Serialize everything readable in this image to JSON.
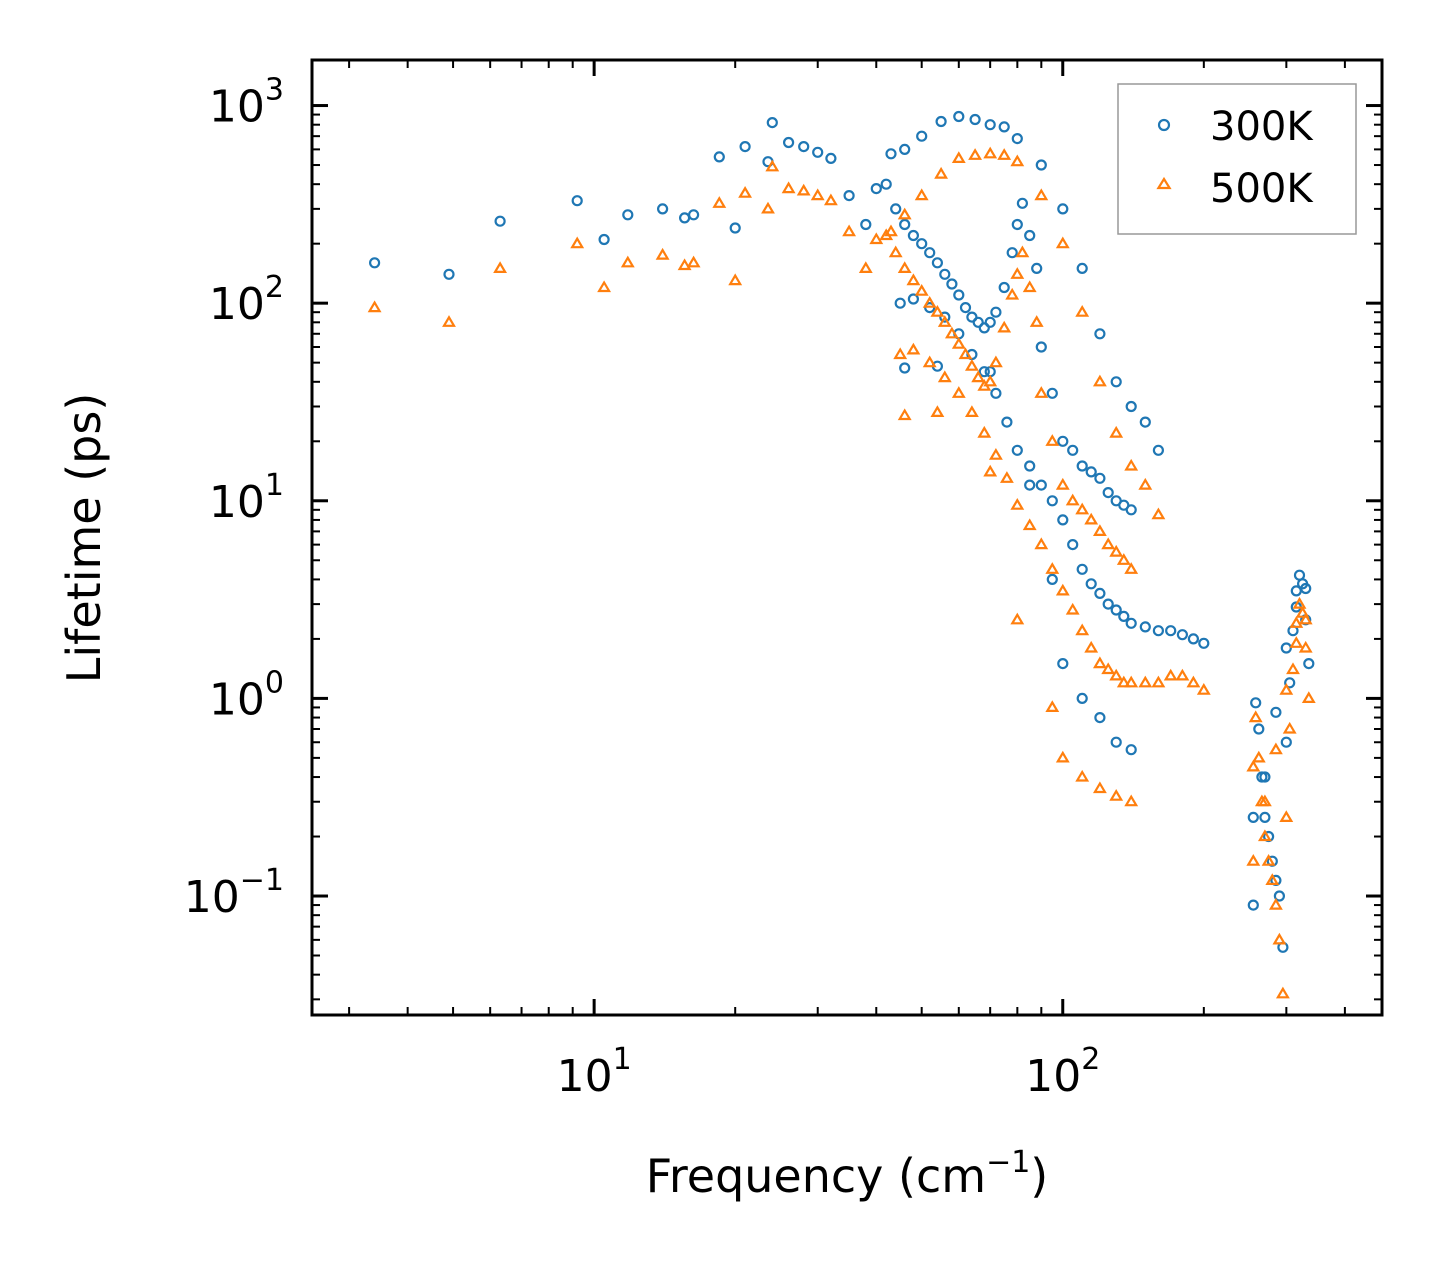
{
  "chart_data": {
    "type": "scatter",
    "xscale": "log",
    "yscale": "log",
    "xlim": [
      2.5,
      480
    ],
    "ylim": [
      0.025,
      1700
    ],
    "xlabel": "Frequency (cm",
    "xlabel_exponent": "−1",
    "xlabel_close": ")",
    "ylabel": "Lifetime (ps)",
    "x_major_ticks": [
      {
        "base": "10",
        "exp": "1",
        "value": 10
      },
      {
        "base": "10",
        "exp": "2",
        "value": 100
      }
    ],
    "y_major_ticks": [
      {
        "base": "10",
        "exp": "3",
        "value": 1000
      },
      {
        "base": "10",
        "exp": "2",
        "value": 100
      },
      {
        "base": "10",
        "exp": "1",
        "value": 10
      },
      {
        "base": "10",
        "exp": "0",
        "value": 1
      },
      {
        "base": "10",
        "exp": "−1",
        "value": 0.1
      }
    ],
    "legend": {
      "position": "top-right"
    },
    "series": [
      {
        "name": "300K",
        "marker": "circle",
        "color": "#1f77b4",
        "x": [
          3.4,
          4.9,
          6.3,
          9.2,
          10.5,
          11.8,
          14.0,
          15.6,
          16.3,
          18.5,
          20.0,
          21.0,
          23.5,
          24.0,
          26.0,
          28.0,
          30.0,
          32.0,
          35.0,
          38.0,
          40.0,
          42.0,
          44.0,
          46.0,
          48.0,
          50.0,
          52.0,
          54.0,
          56.0,
          58.0,
          60.0,
          62.0,
          64.0,
          66.0,
          68.0,
          70.0,
          72.0,
          75.0,
          78.0,
          80.0,
          82.0,
          85.0,
          88.0,
          90.0,
          95.0,
          100.0,
          105.0,
          110.0,
          115.0,
          120.0,
          125.0,
          130.0,
          135.0,
          140.0,
          45.0,
          48.0,
          52.0,
          56.0,
          60.0,
          64.0,
          68.0,
          72.0,
          76.0,
          80.0,
          85.0,
          90.0,
          95.0,
          100.0,
          105.0,
          110.0,
          115.0,
          120.0,
          125.0,
          130.0,
          135.0,
          140.0,
          150.0,
          160.0,
          170.0,
          180.0,
          190.0,
          200.0,
          43.0,
          46.0,
          50.0,
          55.0,
          60.0,
          65.0,
          70.0,
          75.0,
          80.0,
          90.0,
          100.0,
          110.0,
          120.0,
          130.0,
          140.0,
          150.0,
          160.0,
          46.0,
          54.0,
          70.0,
          85.0,
          95.0,
          100.0,
          110.0,
          120.0,
          130.0,
          140.0,
          255.0,
          258.0,
          262.0,
          266.0,
          270.0,
          275.0,
          280.0,
          285.0,
          290.0,
          295.0,
          300.0,
          305.0,
          310.0,
          315.0,
          320.0,
          325.0,
          330.0,
          335.0,
          255.0,
          270.0,
          285.0,
          300.0,
          315.0,
          330.0
        ],
        "y": [
          160,
          140,
          260,
          330,
          210,
          280,
          300,
          270,
          280,
          550,
          240,
          620,
          520,
          820,
          650,
          620,
          580,
          540,
          350,
          250,
          380,
          400,
          300,
          250,
          220,
          200,
          180,
          160,
          140,
          125,
          110,
          95,
          85,
          80,
          75,
          80,
          90,
          120,
          180,
          250,
          320,
          220,
          150,
          60,
          35,
          20,
          18,
          15,
          14,
          13,
          11,
          10,
          9.5,
          9.0,
          100,
          105,
          95,
          85,
          70,
          55,
          45,
          35,
          25,
          18,
          15,
          12,
          10,
          8.0,
          6.0,
          4.5,
          3.8,
          3.4,
          3.0,
          2.8,
          2.6,
          2.4,
          2.3,
          2.2,
          2.2,
          2.1,
          2.0,
          1.9,
          570,
          600,
          700,
          830,
          880,
          850,
          800,
          780,
          680,
          500,
          300,
          150,
          70,
          40,
          30,
          25,
          18,
          47,
          48,
          45,
          12,
          4.0,
          1.5,
          1.0,
          0.8,
          0.6,
          0.55,
          0.09,
          0.95,
          0.7,
          0.4,
          0.25,
          0.2,
          0.15,
          0.12,
          0.1,
          0.055,
          0.6,
          1.2,
          2.2,
          3.5,
          4.2,
          3.8,
          2.5,
          1.5,
          0.25,
          0.4,
          0.85,
          1.8,
          2.9,
          3.6
        ]
      },
      {
        "name": "500K",
        "marker": "triangle",
        "color": "#ff7f0e",
        "x": [
          3.4,
          4.9,
          6.3,
          9.2,
          10.5,
          11.8,
          14.0,
          15.6,
          16.3,
          18.5,
          20.0,
          21.0,
          23.5,
          24.0,
          26.0,
          28.0,
          30.0,
          32.0,
          35.0,
          38.0,
          40.0,
          42.0,
          44.0,
          46.0,
          48.0,
          50.0,
          52.0,
          54.0,
          56.0,
          58.0,
          60.0,
          62.0,
          64.0,
          66.0,
          68.0,
          70.0,
          72.0,
          75.0,
          78.0,
          80.0,
          82.0,
          85.0,
          88.0,
          90.0,
          95.0,
          100.0,
          105.0,
          110.0,
          115.0,
          120.0,
          125.0,
          130.0,
          135.0,
          140.0,
          45.0,
          48.0,
          52.0,
          56.0,
          60.0,
          64.0,
          68.0,
          72.0,
          76.0,
          80.0,
          85.0,
          90.0,
          95.0,
          100.0,
          105.0,
          110.0,
          115.0,
          120.0,
          125.0,
          130.0,
          135.0,
          140.0,
          150.0,
          160.0,
          170.0,
          180.0,
          190.0,
          200.0,
          43.0,
          46.0,
          50.0,
          55.0,
          60.0,
          65.0,
          70.0,
          75.0,
          80.0,
          90.0,
          100.0,
          110.0,
          120.0,
          130.0,
          140.0,
          150.0,
          160.0,
          46.0,
          54.0,
          70.0,
          80.0,
          95.0,
          100.0,
          110.0,
          120.0,
          130.0,
          140.0,
          255.0,
          258.0,
          262.0,
          266.0,
          270.0,
          275.0,
          280.0,
          285.0,
          290.0,
          295.0,
          300.0,
          305.0,
          310.0,
          315.0,
          320.0,
          325.0,
          330.0,
          335.0,
          255.0,
          270.0,
          285.0,
          300.0,
          315.0,
          330.0
        ],
        "y": [
          95,
          80,
          150,
          200,
          120,
          160,
          175,
          155,
          160,
          320,
          130,
          360,
          300,
          490,
          380,
          370,
          350,
          330,
          230,
          150,
          210,
          220,
          180,
          150,
          130,
          115,
          100,
          90,
          80,
          70,
          62,
          55,
          48,
          42,
          38,
          40,
          50,
          75,
          110,
          140,
          180,
          120,
          80,
          35,
          20,
          12,
          10,
          9.0,
          8.0,
          7.0,
          6.0,
          5.5,
          5.0,
          4.5,
          55,
          58,
          50,
          42,
          35,
          28,
          22,
          17,
          13,
          9.5,
          7.5,
          6.0,
          4.5,
          3.5,
          2.8,
          2.2,
          1.8,
          1.5,
          1.4,
          1.3,
          1.2,
          1.2,
          1.2,
          1.2,
          1.3,
          1.3,
          1.2,
          1.1,
          230,
          280,
          350,
          450,
          540,
          560,
          570,
          560,
          520,
          350,
          200,
          90,
          40,
          22,
          15,
          12,
          8.5,
          27,
          28,
          14,
          2.5,
          0.9,
          0.5,
          0.4,
          0.35,
          0.32,
          0.3,
          0.45,
          0.8,
          0.5,
          0.3,
          0.2,
          0.15,
          0.12,
          0.09,
          0.06,
          0.032,
          0.25,
          0.7,
          1.4,
          2.4,
          3.0,
          2.7,
          1.8,
          1.0,
          0.15,
          0.3,
          0.55,
          1.1,
          1.9,
          2.5
        ]
      }
    ]
  }
}
